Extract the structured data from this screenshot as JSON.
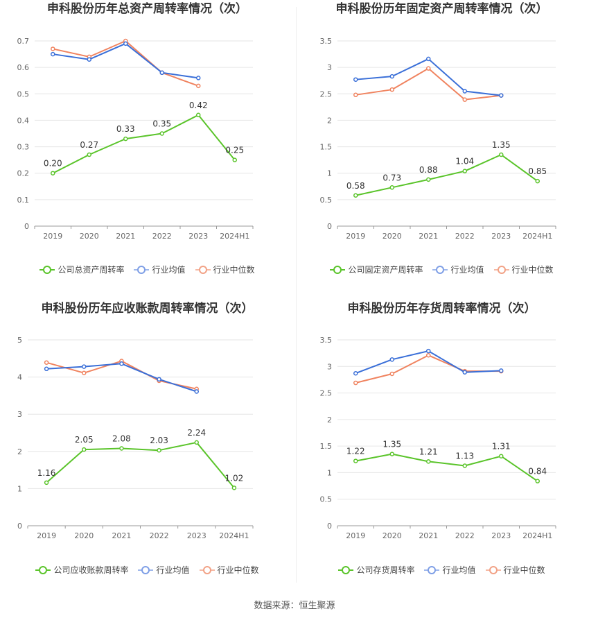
{
  "source": "数据来源：恒生聚源",
  "legend_common": {
    "avg": "行业均值",
    "median": "行业中位数"
  },
  "colors": {
    "company": "#5ac42a",
    "avg": "#3a6fd8",
    "median": "#f0835f"
  },
  "chart_data": [
    {
      "type": "line",
      "title": "申科股份历年总资产周转率情况（次）",
      "categories": [
        "2019",
        "2020",
        "2021",
        "2022",
        "2023",
        "2024H1"
      ],
      "ylim": [
        0,
        0.7
      ],
      "yticks": [
        "0",
        "0.1",
        "0.2",
        "0.3",
        "0.4",
        "0.5",
        "0.6",
        "0.7"
      ],
      "series": [
        {
          "name": "公司总资产周转率",
          "key": "company",
          "values": [
            0.2,
            0.27,
            0.33,
            0.35,
            0.42,
            0.25
          ],
          "labels": [
            "0.20",
            "0.27",
            "0.33",
            "0.35",
            "0.42",
            "0.25"
          ]
        },
        {
          "name": "行业均值",
          "key": "avg",
          "values": [
            0.65,
            0.63,
            0.69,
            0.58,
            0.56,
            null
          ]
        },
        {
          "name": "行业中位数",
          "key": "median",
          "values": [
            0.67,
            0.64,
            0.7,
            0.58,
            0.53,
            null
          ]
        }
      ]
    },
    {
      "type": "line",
      "title": "申科股份历年固定资产周转率情况（次）",
      "categories": [
        "2019",
        "2020",
        "2021",
        "2022",
        "2023",
        "2024H1"
      ],
      "ylim": [
        0,
        3.5
      ],
      "yticks": [
        "0",
        "0.5",
        "1",
        "1.5",
        "2",
        "2.5",
        "3",
        "3.5"
      ],
      "series": [
        {
          "name": "公司固定资产周转率",
          "key": "company",
          "values": [
            0.58,
            0.73,
            0.88,
            1.04,
            1.35,
            0.85
          ],
          "labels": [
            "0.58",
            "0.73",
            "0.88",
            "1.04",
            "1.35",
            "0.85"
          ]
        },
        {
          "name": "行业均值",
          "key": "avg",
          "values": [
            2.77,
            2.83,
            3.16,
            2.55,
            2.47,
            null
          ]
        },
        {
          "name": "行业中位数",
          "key": "median",
          "values": [
            2.48,
            2.58,
            2.98,
            2.39,
            2.47,
            null
          ]
        }
      ]
    },
    {
      "type": "line",
      "title": "申科股份历年应收账款周转率情况（次）",
      "categories": [
        "2019",
        "2020",
        "2021",
        "2022",
        "2023",
        "2024H1"
      ],
      "ylim": [
        0,
        5
      ],
      "yticks": [
        "0",
        "1",
        "2",
        "3",
        "4",
        "5"
      ],
      "series": [
        {
          "name": "公司应收账款周转率",
          "key": "company",
          "values": [
            1.16,
            2.05,
            2.08,
            2.03,
            2.24,
            1.02
          ],
          "labels": [
            "1.16",
            "2.05",
            "2.08",
            "2.03",
            "2.24",
            "1.02"
          ]
        },
        {
          "name": "行业均值",
          "key": "avg",
          "values": [
            4.22,
            4.28,
            4.36,
            3.94,
            3.61,
            null
          ]
        },
        {
          "name": "行业中位数",
          "key": "median",
          "values": [
            4.39,
            4.11,
            4.43,
            3.9,
            3.68,
            null
          ]
        }
      ]
    },
    {
      "type": "line",
      "title": "申科股份历年存货周转率情况（次）",
      "categories": [
        "2019",
        "2020",
        "2021",
        "2022",
        "2023",
        "2024H1"
      ],
      "ylim": [
        0,
        3.5
      ],
      "yticks": [
        "0",
        "0.5",
        "1",
        "1.5",
        "2",
        "2.5",
        "3",
        "3.5"
      ],
      "series": [
        {
          "name": "公司存货周转率",
          "key": "company",
          "values": [
            1.22,
            1.35,
            1.21,
            1.13,
            1.31,
            0.84
          ],
          "labels": [
            "1.22",
            "1.35",
            "1.21",
            "1.13",
            "1.31",
            "0.84"
          ]
        },
        {
          "name": "行业均值",
          "key": "avg",
          "values": [
            2.87,
            3.13,
            3.29,
            2.89,
            2.92,
            null
          ]
        },
        {
          "name": "行业中位数",
          "key": "median",
          "values": [
            2.69,
            2.86,
            3.21,
            2.91,
            2.91,
            null
          ]
        }
      ]
    }
  ]
}
